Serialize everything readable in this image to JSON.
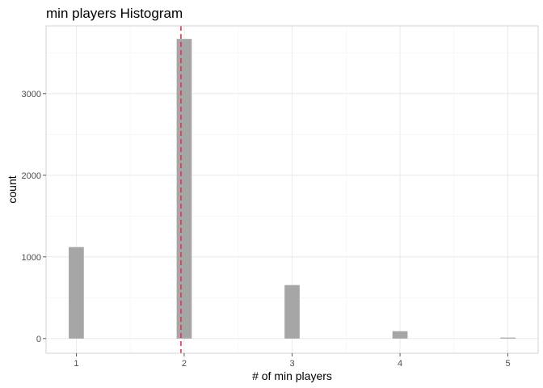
{
  "chart_data": {
    "type": "bar",
    "title": "min players Histogram",
    "xlabel": "# of min players",
    "ylabel": "count",
    "x_ticks": [
      1,
      2,
      3,
      4,
      5
    ],
    "y_ticks": [
      0,
      1000,
      2000,
      3000
    ],
    "xlim": [
      0.72,
      5.28
    ],
    "ylim": [
      -180,
      3830
    ],
    "grid": true,
    "legend": "none",
    "bins": [
      {
        "x": 1,
        "count": 1120
      },
      {
        "x": 2,
        "count": 3670
      },
      {
        "x": 3,
        "count": 655
      },
      {
        "x": 4,
        "count": 90
      },
      {
        "x": 5,
        "count": 12
      }
    ],
    "bin_width": 0.14,
    "reference_line": {
      "x": 1.97,
      "style": "dashed",
      "color": "#e8324b"
    },
    "colors": {
      "bar": "#a6a6a6",
      "reference_line": "#e8324b"
    }
  }
}
